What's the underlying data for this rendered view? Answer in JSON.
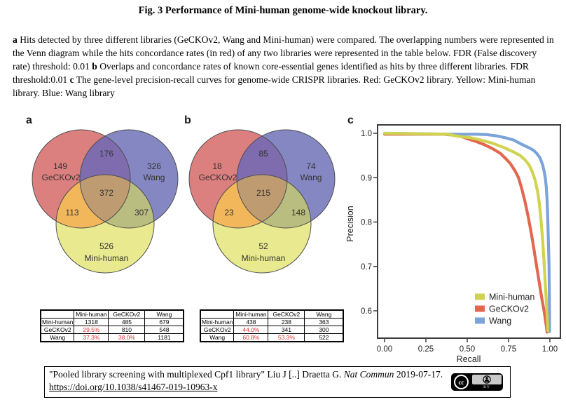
{
  "title": "Fig. 3 Performance of Mini-human genome-wide knockout library.",
  "caption": {
    "a_bold": "a",
    "a_text": " Hits detected by three different libraries (GeCKOv2, Wang and Mini-human) were compared. The overlapping numbers were represented in the Venn diagram while the hits concordance rates (in red) of any two libraries were represented in the table below. FDR (False discovery rate) threshold: 0.01 ",
    "b_bold": "b",
    "b_text": " Overlaps and concordance rates of known core-essential genes identified as hits by three different libraries. FDR threshold:0.01 ",
    "c_bold": "c",
    "c_text": " The gene-level precision-recall curves for genome-wide CRISPR libraries. Red: GeCKOv2 library. Yellow: Mini-human library. Blue: Wang library"
  },
  "panel_labels": {
    "a": "a",
    "b": "b",
    "c": "c"
  },
  "colors": {
    "venn": {
      "red": "#dc7f7f",
      "blue": "#8587c3",
      "yellow": "#e9e98f",
      "purple": "#7e6cae",
      "orange": "#f2b75a",
      "olive": "#b9bd80",
      "brown": "#bf9b71",
      "outline": "#4d4d4d"
    },
    "table_highlight_red": "#e03030"
  },
  "chart_data": [
    {
      "type": "venn",
      "panel": "a",
      "description": "Hits detected by three libraries, FDR threshold 0.01",
      "labels": {
        "gecko": "GeCKOv2",
        "wang": "Wang",
        "mini": "Mini-human"
      },
      "values": {
        "gecko_only": "149",
        "wang_only": "326",
        "mini_only": "526",
        "gecko_wang": "176",
        "gecko_mini": "113",
        "wang_mini": "307",
        "all_three": "372"
      }
    },
    {
      "type": "venn",
      "panel": "b",
      "description": "Known core-essential genes identified as hits, FDR threshold 0.01",
      "labels": {
        "gecko": "GeCKOv2",
        "wang": "Wang",
        "mini": "Mini-human"
      },
      "values": {
        "gecko_only": "18",
        "wang_only": "74",
        "mini_only": "52",
        "gecko_wang": "85",
        "gecko_mini": "23",
        "wang_mini": "148",
        "all_three": "215"
      }
    },
    {
      "type": "table",
      "panel": "a",
      "corner": "",
      "col_headers": [
        "Mini-human",
        "GeCKOv2",
        "Wang"
      ],
      "rows": [
        {
          "label": "Mini-human",
          "cells": [
            "1318",
            "485",
            "679"
          ]
        },
        {
          "label": "GeCKOv2",
          "cells": [
            "29.5%",
            "810",
            "548"
          ]
        },
        {
          "label": "Wang",
          "cells": [
            "37.3%",
            "38.0%",
            "1181"
          ]
        }
      ]
    },
    {
      "type": "table",
      "panel": "b",
      "corner": "",
      "col_headers": [
        "Mini-human",
        "GeCKOv2",
        "Wang"
      ],
      "rows": [
        {
          "label": "Mini-human",
          "cells": [
            "438",
            "238",
            "363"
          ]
        },
        {
          "label": "GeCKOv2",
          "cells": [
            "44.0%",
            "341",
            "300"
          ]
        },
        {
          "label": "Wang",
          "cells": [
            "60.8%",
            "53.3%",
            "522"
          ]
        }
      ]
    },
    {
      "type": "line",
      "panel": "c",
      "title": "Gene-level precision-recall curves",
      "xlabel": "Recall",
      "ylabel": "Precision",
      "xlim": [
        0,
        1.0
      ],
      "ylim": [
        0.54,
        1.02
      ],
      "xtick_labels": [
        "0.00",
        "0.25",
        "0.50",
        "0.75",
        "1.00"
      ],
      "ytick_labels": [
        "1.0",
        "0.9",
        "0.8",
        "0.7",
        "0.6"
      ],
      "grid": false,
      "legend_position": "lower right",
      "legend_order": [
        "Mini-human",
        "GeCKOv2",
        "Wang"
      ],
      "series": [
        {
          "name": "GeCKOv2",
          "color": "#e2674e",
          "points": [
            [
              0,
              0.998
            ],
            [
              0.35,
              0.998
            ],
            [
              0.45,
              0.995
            ],
            [
              0.5,
              0.988
            ],
            [
              0.55,
              0.982
            ],
            [
              0.6,
              0.975
            ],
            [
              0.65,
              0.966
            ],
            [
              0.7,
              0.955
            ],
            [
              0.73,
              0.944
            ],
            [
              0.76,
              0.932
            ],
            [
              0.79,
              0.915
            ],
            [
              0.81,
              0.9
            ],
            [
              0.83,
              0.875
            ],
            [
              0.85,
              0.845
            ],
            [
              0.87,
              0.81
            ],
            [
              0.89,
              0.77
            ],
            [
              0.905,
              0.735
            ],
            [
              0.92,
              0.7
            ],
            [
              0.935,
              0.665
            ],
            [
              0.95,
              0.63
            ],
            [
              0.965,
              0.6
            ],
            [
              0.975,
              0.575
            ],
            [
              0.983,
              0.552
            ]
          ]
        },
        {
          "name": "Wang",
          "color": "#7ba3d9",
          "points": [
            [
              0,
              1.0
            ],
            [
              0.4,
              0.998
            ],
            [
              0.55,
              0.998
            ],
            [
              0.62,
              0.997
            ],
            [
              0.68,
              0.994
            ],
            [
              0.73,
              0.99
            ],
            [
              0.78,
              0.985
            ],
            [
              0.83,
              0.975
            ],
            [
              0.87,
              0.968
            ],
            [
              0.9,
              0.962
            ],
            [
              0.92,
              0.955
            ],
            [
              0.94,
              0.945
            ],
            [
              0.955,
              0.93
            ],
            [
              0.965,
              0.915
            ],
            [
              0.972,
              0.9
            ],
            [
              0.978,
              0.88
            ],
            [
              0.983,
              0.85
            ],
            [
              0.987,
              0.81
            ],
            [
              0.99,
              0.77
            ],
            [
              0.993,
              0.73
            ],
            [
              0.995,
              0.7
            ],
            [
              0.997,
              0.63
            ],
            [
              0.998,
              0.553
            ]
          ]
        },
        {
          "name": "Mini-human",
          "color": "#cfd34f",
          "points": [
            [
              0,
              1.0
            ],
            [
              0.38,
              0.998
            ],
            [
              0.45,
              0.993
            ],
            [
              0.52,
              0.99
            ],
            [
              0.58,
              0.985
            ],
            [
              0.65,
              0.978
            ],
            [
              0.72,
              0.968
            ],
            [
              0.78,
              0.958
            ],
            [
              0.82,
              0.95
            ],
            [
              0.85,
              0.94
            ],
            [
              0.875,
              0.928
            ],
            [
              0.895,
              0.912
            ],
            [
              0.91,
              0.895
            ],
            [
              0.925,
              0.87
            ],
            [
              0.935,
              0.845
            ],
            [
              0.945,
              0.81
            ],
            [
              0.955,
              0.765
            ],
            [
              0.963,
              0.72
            ],
            [
              0.97,
              0.675
            ],
            [
              0.977,
              0.63
            ],
            [
              0.983,
              0.59
            ],
            [
              0.988,
              0.555
            ]
          ]
        }
      ]
    }
  ],
  "citation": {
    "text_before_journal": "\"Pooled library screening with multiplexed Cpf1 library\" Liu J [..] Draetta G. ",
    "journal": "Nat Commun",
    "text_after_journal": " 2019-07-17.",
    "doi_link": "https://doi.org/10.1038/s41467-019-10963-x",
    "badge": {
      "cc_text": "cc",
      "by_text": "BY"
    }
  }
}
